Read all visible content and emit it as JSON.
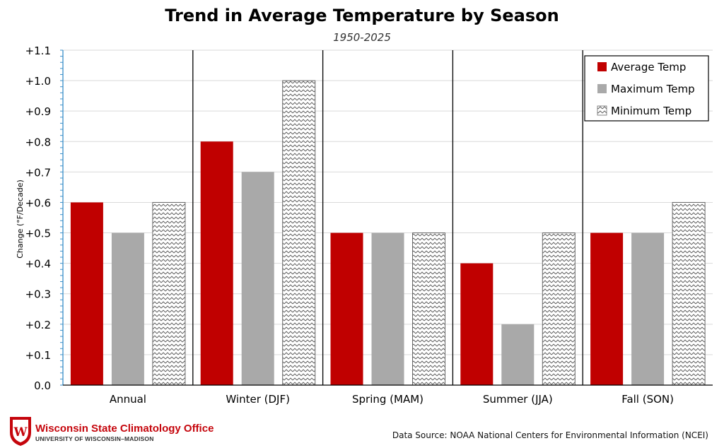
{
  "colors": {
    "average": "#c00000",
    "maximum": "#a9a9a9",
    "minimum_hatch": "#555555",
    "brand_red": "#c5050c"
  },
  "chart_data": {
    "type": "bar",
    "title": "Trend in Average Temperature by Season",
    "subtitle": "1950-2025",
    "xlabel": "",
    "ylabel": "Change (°F/Decade)",
    "ylim": [
      0,
      1.1
    ],
    "yticks": [
      0,
      0.1,
      0.2,
      0.3,
      0.4,
      0.5,
      0.6,
      0.7,
      0.8,
      0.9,
      1.0,
      1.1
    ],
    "ytick_labels": [
      "0.0",
      "+0.1",
      "+0.2",
      "+0.3",
      "+0.4",
      "+0.5",
      "+0.6",
      "+0.7",
      "+0.8",
      "+0.9",
      "+1.0",
      "+1.1"
    ],
    "categories": [
      "Annual",
      "Winter (DJF)",
      "Spring (MAM)",
      "Summer (JJA)",
      "Fall (SON)"
    ],
    "series": [
      {
        "name": "Average Temp",
        "style": "solid-red",
        "values": [
          0.6,
          0.8,
          0.5,
          0.4,
          0.5
        ]
      },
      {
        "name": "Maximum Temp",
        "style": "solid-gray",
        "values": [
          0.5,
          0.7,
          0.5,
          0.2,
          0.5
        ]
      },
      {
        "name": "Minimum Temp",
        "style": "hatched",
        "values": [
          0.6,
          1.0,
          0.5,
          0.5,
          0.6
        ]
      }
    ],
    "legend_position": "top-right",
    "grid": true
  },
  "footer": {
    "org_name": "Wisconsin State Climatology Office",
    "org_sub": "UNIVERSITY OF WISCONSIN–MADISON",
    "crest_letter": "W",
    "source": "Data Source: NOAA National Centers for Environmental Information (NCEI)"
  }
}
